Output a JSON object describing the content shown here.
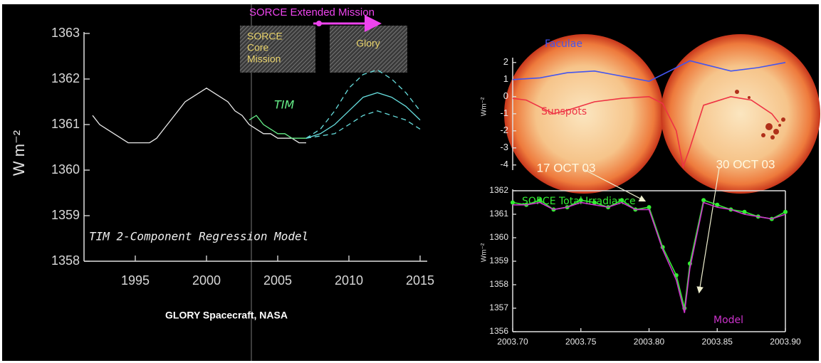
{
  "chart_data": [
    {
      "type": "line",
      "y_label": "W m⁻²",
      "xlim": [
        1991.4,
        2015.5
      ],
      "ylim": [
        1358,
        1363
      ],
      "xticks": [
        1995,
        2000,
        2005,
        2010,
        2015
      ],
      "yticks": [
        1358,
        1359,
        1360,
        1361,
        1362,
        1363
      ],
      "series": [
        {
          "color": "#e8e8e8",
          "x": [
            1992.0,
            1992.5,
            1993.0,
            1993.5,
            1994.0,
            1994.5,
            1995.0,
            1995.5,
            1996.0,
            1996.5,
            1997.0,
            1997.5,
            1998.0,
            1998.5,
            1999.0,
            1999.5,
            2000.0,
            2000.5,
            2001.0,
            2001.5,
            2002.0,
            2002.5,
            2003.0,
            2003.5,
            2004.0,
            2004.5,
            2005.0,
            2005.5,
            2006.0,
            2006.5,
            2007.0
          ],
          "values": [
            1361.2,
            1361.0,
            1360.9,
            1360.8,
            1360.7,
            1360.6,
            1360.6,
            1360.6,
            1360.6,
            1360.7,
            1360.9,
            1361.1,
            1361.3,
            1361.5,
            1361.6,
            1361.7,
            1361.8,
            1361.7,
            1361.6,
            1361.5,
            1361.3,
            1361.2,
            1361.0,
            1360.9,
            1360.8,
            1360.8,
            1360.7,
            1360.7,
            1360.7,
            1360.6,
            1360.6
          ]
        },
        {
          "name": "TIM",
          "color": "#66ee88",
          "x": [
            2003.0,
            2003.5,
            2004.0,
            2004.5,
            2005.0,
            2005.5,
            2006.0,
            2006.5,
            2007.0
          ],
          "values": [
            1361.1,
            1361.2,
            1361.0,
            1360.9,
            1360.8,
            1360.8,
            1360.7,
            1360.7,
            1360.7
          ]
        },
        {
          "color": "#66dddd",
          "x": [
            2007,
            2008,
            2009,
            2010,
            2011,
            2012,
            2013,
            2014,
            2015
          ],
          "values": [
            1360.7,
            1360.8,
            1361.0,
            1361.3,
            1361.6,
            1361.7,
            1361.6,
            1361.4,
            1361.1
          ]
        },
        {
          "color": "#66dddd",
          "style": "dashed",
          "x": [
            2007,
            2008,
            2009,
            2010,
            2011,
            2012,
            2013,
            2014,
            2015
          ],
          "values": [
            1360.7,
            1360.9,
            1361.3,
            1361.8,
            1362.1,
            1362.2,
            1362.0,
            1361.7,
            1361.3
          ]
        },
        {
          "color": "#66dddd",
          "style": "dashed",
          "x": [
            2007,
            2008,
            2009,
            2010,
            2011,
            2012,
            2013,
            2014,
            2015
          ],
          "values": [
            1360.7,
            1360.75,
            1360.8,
            1361.0,
            1361.2,
            1361.3,
            1361.2,
            1361.1,
            1360.9
          ]
        }
      ],
      "model_label": "TIM 2-Component Regression Model",
      "extended_mission_label": "SORCE Extended Mission",
      "core_mission_label": [
        "SORCE",
        "Core",
        "Mission"
      ],
      "glory_label": "Glory",
      "caption": "GLORY Spacecraft, NASA"
    },
    {
      "type": "line",
      "y_label": "Wm⁻²",
      "xlim": [
        2003.7,
        2003.9
      ],
      "ylim": [
        -4.3,
        2.2
      ],
      "yticks": [
        -4,
        -3,
        -2,
        -1,
        0,
        1,
        2
      ],
      "series": [
        {
          "name": "Faculae",
          "color": "#4455ee",
          "x": [
            2003.7,
            2003.72,
            2003.74,
            2003.76,
            2003.78,
            2003.8,
            2003.81,
            2003.83,
            2003.84,
            2003.86,
            2003.88,
            2003.9
          ],
          "values": [
            1.0,
            1.1,
            1.4,
            1.5,
            1.2,
            0.9,
            1.3,
            2.1,
            1.9,
            1.5,
            1.7,
            2.0
          ]
        },
        {
          "name": "Sunspots",
          "color": "#ee3344",
          "x": [
            2003.7,
            2003.71,
            2003.72,
            2003.73,
            2003.74,
            2003.76,
            2003.78,
            2003.8,
            2003.81,
            2003.82,
            2003.825,
            2003.83,
            2003.84,
            2003.86,
            2003.875,
            2003.89,
            2003.895
          ],
          "values": [
            -0.1,
            -0.2,
            -0.6,
            -1.0,
            -0.8,
            -0.3,
            -0.1,
            0.0,
            -0.4,
            -2.0,
            -4.1,
            -3.0,
            -0.5,
            0.0,
            -0.2,
            -1.0,
            -1.5
          ]
        }
      ],
      "date_labels": [
        "17 OCT 03",
        "30 OCT 03"
      ]
    },
    {
      "type": "line",
      "y_label": "Wm⁻²",
      "xlim": [
        2003.7,
        2003.9
      ],
      "ylim": [
        1356,
        1362
      ],
      "xticks": [
        {
          "value": 2003.7,
          "label": "2003.70"
        },
        {
          "value": 2003.75,
          "label": "2003.75"
        },
        {
          "value": 2003.8,
          "label": "2003.80"
        },
        {
          "value": 2003.85,
          "label": "2003.85"
        },
        {
          "value": 2003.9,
          "label": "2003.90"
        }
      ],
      "yticks": [
        1356,
        1357,
        1358,
        1359,
        1360,
        1361,
        1362
      ],
      "series": [
        {
          "name": "SORCE Total Irradiance",
          "color": "#33ee33",
          "markers": true,
          "x": [
            2003.7,
            2003.71,
            2003.72,
            2003.73,
            2003.74,
            2003.75,
            2003.76,
            2003.77,
            2003.78,
            2003.79,
            2003.8,
            2003.81,
            2003.82,
            2003.826,
            2003.83,
            2003.84,
            2003.85,
            2003.86,
            2003.87,
            2003.88,
            2003.89,
            2003.9
          ],
          "values": [
            1361.5,
            1361.4,
            1361.6,
            1361.2,
            1361.3,
            1361.6,
            1361.5,
            1361.3,
            1361.6,
            1361.2,
            1361.3,
            1359.6,
            1358.4,
            1357.0,
            1358.9,
            1361.6,
            1361.4,
            1361.2,
            1361.1,
            1360.9,
            1360.8,
            1361.1
          ]
        },
        {
          "name": "Model",
          "color": "#cc33cc",
          "x": [
            2003.7,
            2003.71,
            2003.72,
            2003.73,
            2003.74,
            2003.75,
            2003.76,
            2003.77,
            2003.78,
            2003.79,
            2003.8,
            2003.81,
            2003.82,
            2003.826,
            2003.83,
            2003.84,
            2003.85,
            2003.86,
            2003.87,
            2003.88,
            2003.89,
            2003.9
          ],
          "values": [
            1361.4,
            1361.4,
            1361.5,
            1361.2,
            1361.3,
            1361.5,
            1361.4,
            1361.3,
            1361.5,
            1361.2,
            1361.2,
            1359.5,
            1358.2,
            1356.8,
            1358.7,
            1361.5,
            1361.3,
            1361.2,
            1361.0,
            1360.9,
            1360.8,
            1361.0
          ]
        }
      ]
    }
  ]
}
